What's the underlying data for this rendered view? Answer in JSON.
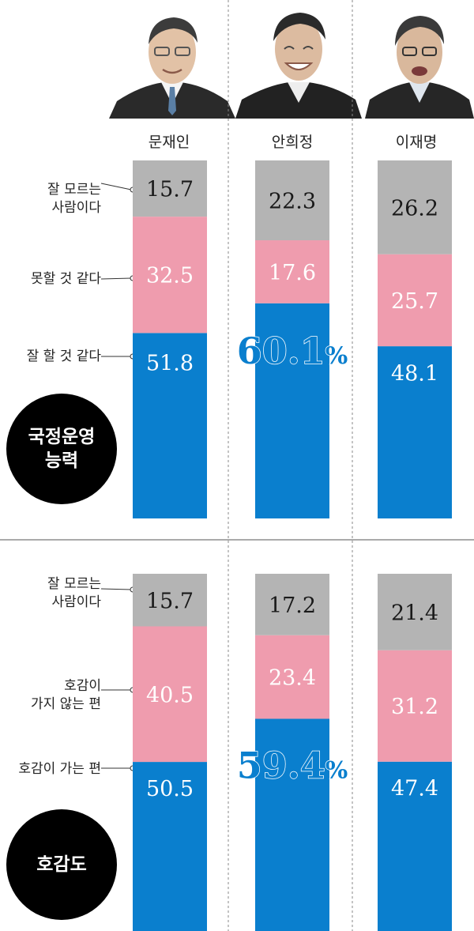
{
  "candidates": [
    "문재인",
    "안희정",
    "이재명"
  ],
  "colors": {
    "gray": "#b4b4b4",
    "pink": "#ef9cae",
    "blue": "#0a7fce",
    "highlight_text": "#0a7fce"
  },
  "chart_data": [
    {
      "type": "bar",
      "stacked": true,
      "panel_label": "국정운영 능력",
      "categories": [
        "문재인",
        "안희정",
        "이재명"
      ],
      "series": [
        {
          "name": "잘 할 것 같다",
          "values": [
            51.8,
            60.1,
            48.1
          ],
          "color": "blue"
        },
        {
          "name": "못할 것 같다",
          "values": [
            32.5,
            17.6,
            25.7
          ],
          "color": "pink"
        },
        {
          "name": "잘 모르는 사람이다",
          "values": [
            15.7,
            22.3,
            26.2
          ],
          "color": "gray"
        }
      ],
      "value_labels": {
        "잘 할 것 같다": [
          "51.8",
          "60.1%",
          "48.1"
        ],
        "못할 것 같다": [
          "32.5",
          "17.6",
          "25.7"
        ],
        "잘 모르는 사람이다": [
          "15.7",
          "22.3",
          "26.2"
        ]
      }
    },
    {
      "type": "bar",
      "stacked": true,
      "panel_label": "호감도",
      "categories": [
        "문재인",
        "안희정",
        "이재명"
      ],
      "series": [
        {
          "name": "호감이 가는 편",
          "values": [
            50.5,
            59.4,
            47.4
          ],
          "color": "blue"
        },
        {
          "name": "호감이 가지 않는 편",
          "values": [
            40.5,
            23.4,
            31.2
          ],
          "color": "pink"
        },
        {
          "name": "잘 모르는 사람이다",
          "values": [
            15.7,
            17.2,
            21.4
          ],
          "color": "gray"
        }
      ],
      "value_labels": {
        "호감이 가는 편": [
          "50.5",
          "59.4%",
          "47.4"
        ],
        "호감이 가지 않는 편": [
          "40.5",
          "23.4",
          "31.2"
        ],
        "잘 모르는 사람이다": [
          "15.7",
          "17.2",
          "21.4"
        ]
      }
    }
  ],
  "labels": {
    "p1_unknown_line1": "잘 모르는",
    "p1_unknown_line2": "사람이다",
    "p1_bad": "못할 것 같다",
    "p1_good": "잘 할 것 같다",
    "p1_circle_line1": "국정운영",
    "p1_circle_line2": "능력",
    "p2_unknown_line1": "잘 모르는",
    "p2_unknown_line2": "사람이다",
    "p2_bad_line1": "호감이",
    "p2_bad_line2": "가지 않는 편",
    "p2_good": "호감이 가는 편",
    "p2_circle": "호감도"
  }
}
